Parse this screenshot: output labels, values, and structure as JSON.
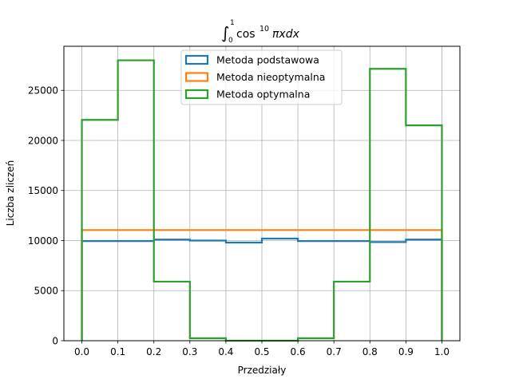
{
  "chart_data": {
    "type": "histogram",
    "title_integrand": "cos",
    "title_exponent": "10",
    "title_tail": "πxdx",
    "title_lower_limit": "0",
    "title_upper_limit": "1",
    "xlabel": "Przedziały",
    "ylabel": "Liczba zliczeń",
    "xlim": [
      -0.05,
      1.05
    ],
    "ylim": [
      0,
      29400
    ],
    "grid": true,
    "legend_position": "top-center",
    "x_ticks": [
      0.0,
      0.1,
      0.2,
      0.3,
      0.4,
      0.5,
      0.6,
      0.7,
      0.8,
      0.9,
      1.0
    ],
    "x_tick_labels": [
      "0.0",
      "0.1",
      "0.2",
      "0.3",
      "0.4",
      "0.5",
      "0.6",
      "0.7",
      "0.8",
      "0.9",
      "1.0"
    ],
    "y_ticks": [
      0,
      5000,
      10000,
      15000,
      20000,
      25000
    ],
    "y_tick_labels": [
      "0",
      "5000",
      "10000",
      "15000",
      "20000",
      "25000"
    ],
    "bin_edges": [
      0.0,
      0.1,
      0.2,
      0.3,
      0.4,
      0.5,
      0.6,
      0.7,
      0.8,
      0.9,
      1.0
    ],
    "series": [
      {
        "name": "Metoda podstawowa",
        "color": "#1f77b4",
        "values": [
          9950,
          9950,
          10100,
          10000,
          9800,
          10200,
          9950,
          9950,
          9850,
          10100
        ]
      },
      {
        "name": "Metoda nieoptymalna",
        "color": "#ff7f0e",
        "values": [
          11050,
          11050,
          11050,
          11050,
          11050,
          11050,
          11050,
          11050,
          11050,
          11050
        ]
      },
      {
        "name": "Metoda optymalna",
        "color": "#2ca02c",
        "values": [
          22050,
          28000,
          5900,
          250,
          0,
          0,
          250,
          5900,
          27150,
          21500
        ]
      }
    ]
  }
}
